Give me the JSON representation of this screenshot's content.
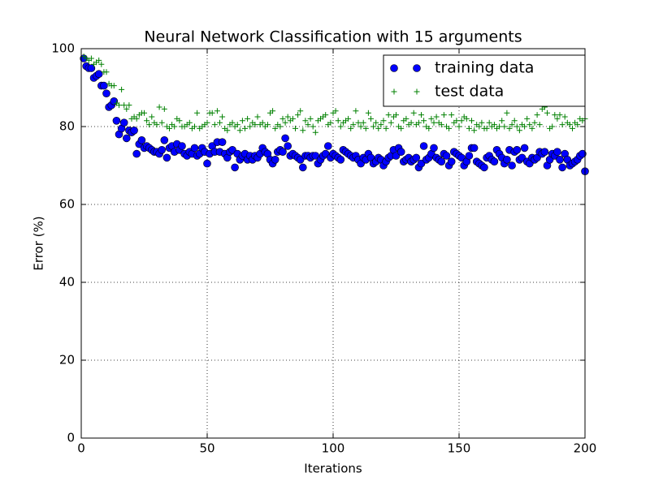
{
  "chart_data": {
    "type": "scatter",
    "title": "Neural Network Classification with 15 arguments",
    "x_label": "Iterations",
    "y_label": "Error (%)",
    "xlim": [
      0,
      200
    ],
    "xticks": [
      0,
      50,
      100,
      150,
      200
    ],
    "ylim": [
      0,
      100
    ],
    "yticks": [
      0,
      20,
      40,
      60,
      80,
      100
    ],
    "grid": true,
    "legend": "upper right",
    "x": [
      1,
      2,
      3,
      4,
      5,
      6,
      7,
      8,
      9,
      10,
      11,
      12,
      13,
      14,
      15,
      16,
      17,
      18,
      19,
      20,
      21,
      22,
      23,
      24,
      25,
      26,
      27,
      28,
      29,
      30,
      31,
      32,
      33,
      34,
      35,
      36,
      37,
      38,
      39,
      40,
      41,
      42,
      43,
      44,
      45,
      46,
      47,
      48,
      49,
      50,
      51,
      52,
      53,
      54,
      55,
      56,
      57,
      58,
      59,
      60,
      61,
      62,
      63,
      64,
      65,
      66,
      67,
      68,
      69,
      70,
      71,
      72,
      73,
      74,
      75,
      76,
      77,
      78,
      79,
      80,
      81,
      82,
      83,
      84,
      85,
      86,
      87,
      88,
      89,
      90,
      91,
      92,
      93,
      94,
      95,
      96,
      97,
      98,
      99,
      100,
      101,
      102,
      103,
      104,
      105,
      106,
      107,
      108,
      109,
      110,
      111,
      112,
      113,
      114,
      115,
      116,
      117,
      118,
      119,
      120,
      121,
      122,
      123,
      124,
      125,
      126,
      127,
      128,
      129,
      130,
      131,
      132,
      133,
      134,
      135,
      136,
      137,
      138,
      139,
      140,
      141,
      142,
      143,
      144,
      145,
      146,
      147,
      148,
      149,
      150,
      151,
      152,
      153,
      154,
      155,
      156,
      157,
      158,
      159,
      160,
      161,
      162,
      163,
      164,
      165,
      166,
      167,
      168,
      169,
      170,
      171,
      172,
      173,
      174,
      175,
      176,
      177,
      178,
      179,
      180,
      181,
      182,
      183,
      184,
      185,
      186,
      187,
      188,
      189,
      190,
      191,
      192,
      193,
      194,
      195,
      196,
      197,
      198,
      199,
      200
    ],
    "series": [
      {
        "name": "training data",
        "color": "#0000ff",
        "marker": "o",
        "values": [
          97.5,
          95.5,
          95,
          95,
          92.5,
          93,
          93.5,
          90.5,
          90.5,
          88.5,
          85,
          85.5,
          86.5,
          81.5,
          78,
          79.5,
          81,
          77,
          79,
          78.5,
          79,
          73,
          75.5,
          76.5,
          74.5,
          75,
          74.5,
          74,
          73.5,
          73.5,
          73,
          74,
          76.5,
          72,
          74.5,
          75,
          73.5,
          75.5,
          74,
          75,
          73,
          72.5,
          73.5,
          73,
          74.5,
          72.5,
          73,
          74.5,
          73.5,
          70.5,
          73,
          75,
          73.5,
          76,
          73.5,
          76,
          73,
          72,
          73.5,
          74,
          69.5,
          73,
          71.5,
          72.5,
          73,
          71.5,
          72.5,
          71.5,
          72.5,
          72,
          73,
          74.5,
          73.5,
          73,
          71.5,
          70.5,
          71.5,
          73.5,
          74,
          73.5,
          77,
          75,
          72.5,
          73,
          72.5,
          72,
          71.5,
          69.5,
          72.5,
          72.5,
          72,
          72.5,
          72.5,
          70.5,
          71.5,
          72.5,
          73,
          75,
          72,
          73,
          72.5,
          72,
          71.5,
          74,
          73.5,
          73,
          72.5,
          72,
          72.5,
          71.5,
          70.5,
          72,
          71.5,
          73,
          72,
          70.5,
          71,
          72,
          71.5,
          70,
          71,
          72,
          72.5,
          74,
          72.5,
          74.5,
          73.5,
          71,
          71.5,
          72,
          71,
          71.5,
          72,
          69.5,
          70.5,
          75,
          71.5,
          72,
          73,
          74.5,
          72,
          71.5,
          71,
          73,
          72.5,
          70,
          71,
          73.5,
          73,
          72.5,
          72,
          70,
          71,
          72.5,
          74.5,
          74.5,
          71,
          70.5,
          70,
          69.5,
          72,
          72.5,
          71.5,
          71,
          74,
          73,
          72,
          70.5,
          71.5,
          74,
          70,
          73.5,
          74,
          71.5,
          72,
          74.5,
          71,
          70.5,
          72,
          71.5,
          72,
          73.5,
          73,
          73.5,
          70,
          71.5,
          73,
          72.5,
          73.5,
          71.5,
          69.5,
          73,
          71.5,
          70,
          70.5,
          71,
          71.5,
          72.5,
          73,
          68.5
        ]
      },
      {
        "name": "test data",
        "color": "#008000",
        "marker": "+",
        "values": [
          98,
          97.5,
          97,
          97.5,
          96,
          96.5,
          97,
          96,
          94,
          94,
          91,
          90.5,
          90.5,
          86,
          85.5,
          89.5,
          85.5,
          84.5,
          85.5,
          82,
          82.5,
          82,
          83,
          83.5,
          83.5,
          81.5,
          80.5,
          82.5,
          81,
          80.5,
          85,
          81,
          84.5,
          80,
          79.5,
          80.5,
          80,
          82,
          81.5,
          80,
          80,
          80.5,
          81,
          79.5,
          80,
          83.5,
          79.5,
          80,
          80.5,
          81,
          83.5,
          83.5,
          80.5,
          84,
          81,
          82.5,
          79.5,
          79,
          80.5,
          81,
          80,
          80.5,
          79,
          81.5,
          79.5,
          82,
          80,
          81,
          80.5,
          82.5,
          80.5,
          81,
          80,
          80.5,
          83.5,
          84,
          79.5,
          80.5,
          80,
          82,
          81,
          82.5,
          81.5,
          82,
          79.5,
          83,
          84,
          79,
          81.5,
          80.5,
          82,
          80,
          78.5,
          81.5,
          82,
          82.5,
          83,
          80.5,
          81,
          83.5,
          84,
          81.5,
          80,
          81,
          81.5,
          82,
          79.5,
          80.5,
          84,
          81,
          80,
          81,
          79.5,
          83.5,
          82,
          80,
          81,
          79.5,
          80.5,
          81.5,
          79.5,
          83,
          81,
          82.5,
          83,
          80,
          79.5,
          81.5,
          82,
          80.5,
          81,
          83.5,
          80.5,
          81,
          83,
          81.5,
          80,
          79.5,
          82,
          81,
          82.5,
          81,
          80.5,
          83,
          80,
          79.5,
          83,
          81,
          81.5,
          80,
          81.5,
          82.5,
          82,
          79.5,
          81.5,
          79,
          80.5,
          80,
          81,
          79.5,
          79.5,
          81,
          80,
          80.5,
          79.5,
          80,
          81.5,
          80,
          83.5,
          79.5,
          80.5,
          81.5,
          80,
          79,
          80.5,
          80,
          82,
          80.5,
          79.5,
          81,
          83,
          80.5,
          84.5,
          85,
          83.5,
          79.5,
          80,
          83,
          82,
          83,
          80.5,
          82.5,
          81,
          80.5,
          79.5,
          81,
          80.5,
          82,
          81.5,
          82
        ]
      }
    ]
  }
}
